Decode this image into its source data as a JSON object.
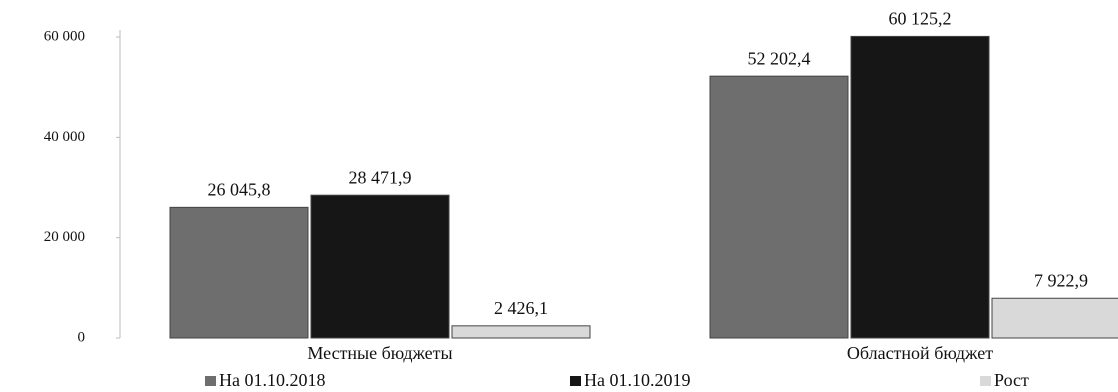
{
  "chart_data": {
    "type": "bar",
    "categories": [
      "Местные бюджеты",
      "Областной бюджет"
    ],
    "series": [
      {
        "name": "На 01.10.2018",
        "color": "#6e6e6e",
        "values": [
          26045.8,
          52202.4
        ],
        "value_labels": [
          "26 045,8",
          "52 202,4"
        ]
      },
      {
        "name": "На 01.10.2019",
        "color": "#161616",
        "values": [
          28471.9,
          60125.2
        ],
        "value_labels": [
          "28 471,9",
          "60 125,2"
        ]
      },
      {
        "name": "Рост",
        "color": "#d9d9d9",
        "values": [
          2426.1,
          7922.9
        ],
        "value_labels": [
          "2 426,1",
          "7 922,9"
        ]
      }
    ],
    "ylim": [
      0,
      62000
    ],
    "yticks": [
      0,
      {
        "value": 20000,
        "label": "20 000"
      },
      {
        "value": 40000,
        "label": "40 000"
      },
      {
        "value": 60000,
        "label": "60 000"
      }
    ],
    "grid": false,
    "legend": "bottom"
  }
}
